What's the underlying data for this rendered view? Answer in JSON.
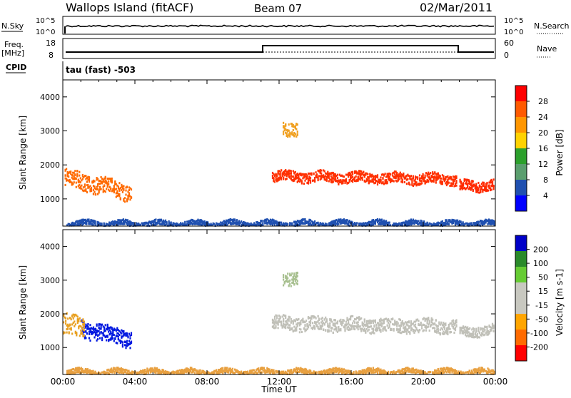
{
  "header": {
    "title": "Wallops Island (fitACF)",
    "beam": "Beam 07",
    "date": "02/Mar/2011"
  },
  "top_panels": {
    "nsky_label": "N.Sky",
    "nsky_ticks": [
      "10^5",
      "10^0"
    ],
    "nsearch_label": "N.Search",
    "nsearch_ticks": [
      "10^5",
      "10^0"
    ],
    "freq_label": "Freq.",
    "freq_unit": "[MHz]",
    "freq_ticks": [
      "18",
      "8"
    ],
    "nave_label": "Nave",
    "nave_ticks": [
      "60",
      "0"
    ],
    "cpid_label": "CPID",
    "cpid_text": "tau (fast) -503"
  },
  "chart_data": [
    {
      "type": "heatmap",
      "name": "power",
      "ylabel": "Slant Range [km]",
      "yticks": [
        "4000",
        "3000",
        "2000",
        "1000"
      ],
      "ytick_values": [
        4000,
        3000,
        2000,
        1000
      ],
      "ylim": [
        200,
        4500
      ],
      "xlim": [
        0,
        24
      ],
      "colorbar": {
        "label": "Power [dB]",
        "ticks": [
          "28",
          "24",
          "20",
          "16",
          "12",
          "8",
          "4"
        ],
        "colors": [
          "#ff0000",
          "#ff5a00",
          "#ff9600",
          "#ffd200",
          "#2ca02c",
          "#5a9e6e",
          "#2050b0",
          "#0000ff"
        ]
      },
      "echo_bands": [
        {
          "t0": 0.1,
          "t1": 3.8,
          "r_center": 1650,
          "r_width": 500,
          "slope": -120,
          "color": "#ff6a00"
        },
        {
          "t0": 11.6,
          "t1": 21.8,
          "r_center": 1700,
          "r_width": 300,
          "slope": -10,
          "color": "#ff3000"
        },
        {
          "t0": 22.0,
          "t1": 23.9,
          "r_center": 1400,
          "r_width": 300,
          "slope": 20,
          "color": "#ff2a00"
        },
        {
          "t0": 12.2,
          "t1": 13.0,
          "r_center": 3100,
          "r_width": 400,
          "slope": 0,
          "color": "#f0a020"
        },
        {
          "t0": 0.2,
          "t1": 23.9,
          "r_center": 300,
          "r_width": 150,
          "slope": 0,
          "color": "#2050b0"
        }
      ]
    },
    {
      "type": "heatmap",
      "name": "velocity",
      "ylabel": "Slant Range [km]",
      "yticks": [
        "4000",
        "3000",
        "2000",
        "1000"
      ],
      "ytick_values": [
        4000,
        3000,
        2000,
        1000
      ],
      "ylim": [
        200,
        4500
      ],
      "xlim": [
        0,
        24
      ],
      "xticks": [
        "00:00",
        "04:00",
        "08:00",
        "12:00",
        "16:00",
        "20:00",
        "00:00"
      ],
      "xtick_values": [
        0,
        4,
        8,
        12,
        16,
        20,
        24
      ],
      "xlabel": "Time UT",
      "colorbar": {
        "label": "Velocity [m s-1]",
        "ticks": [
          "200",
          "100",
          "50",
          "15",
          "-15",
          "-50",
          "-100",
          "-200"
        ],
        "colors": [
          "#0000c8",
          "#2a8a2a",
          "#66cc33",
          "#c8c8c0",
          "#c8c8c0",
          "#ffa500",
          "#ff6a00",
          "#ff0000"
        ]
      },
      "echo_bands": [
        {
          "t0": 1.0,
          "t1": 3.8,
          "r_center": 1600,
          "r_width": 500,
          "slope": -120,
          "color": "#0018e0"
        },
        {
          "t0": 0.0,
          "t1": 1.2,
          "r_center": 1700,
          "r_width": 600,
          "slope": 0,
          "color": "#e8a020"
        },
        {
          "t0": 11.6,
          "t1": 21.8,
          "r_center": 1750,
          "r_width": 400,
          "slope": -10,
          "color": "#c0c0b8"
        },
        {
          "t0": 22.0,
          "t1": 23.9,
          "r_center": 1500,
          "r_width": 300,
          "slope": 20,
          "color": "#c0c0b8"
        },
        {
          "t0": 12.2,
          "t1": 13.0,
          "r_center": 3100,
          "r_width": 400,
          "slope": 0,
          "color": "#a8c090"
        },
        {
          "t0": 0.2,
          "t1": 23.9,
          "r_center": 300,
          "r_width": 150,
          "slope": 0,
          "color": "#e8a040"
        }
      ]
    }
  ]
}
